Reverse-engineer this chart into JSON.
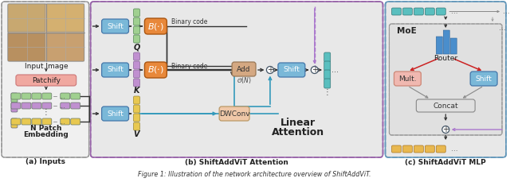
{
  "caption": "Figure 1: Illustration of the network architecture overview of ShiftAddViT.",
  "section_labels": [
    "(a) Inputs",
    "(b) ShiftAddViT Attention",
    "(c) ShiftAddViT MLP"
  ],
  "colors": {
    "shift_box": "#7ab8d8",
    "binary_box": "#e8883a",
    "add_box": "#d4a882",
    "dwconv_box": "#f0c8a8",
    "patchify_box": "#f0a8a0",
    "mult_box": "#f0b8b0",
    "concat_box": "#e0e0e0",
    "teal": "#5abfbf",
    "green_patch": "#a0d090",
    "purple_patch": "#c090d0",
    "yellow_patch": "#e8c850",
    "orange_patch": "#e8b850",
    "router_bar": "#4a8ecc",
    "attn_bg": "#e8e8e8",
    "inputs_bg": "#f0f0f0",
    "mlp_bg": "#e8e8e8",
    "moe_inner_bg": "#e0e0e0"
  }
}
